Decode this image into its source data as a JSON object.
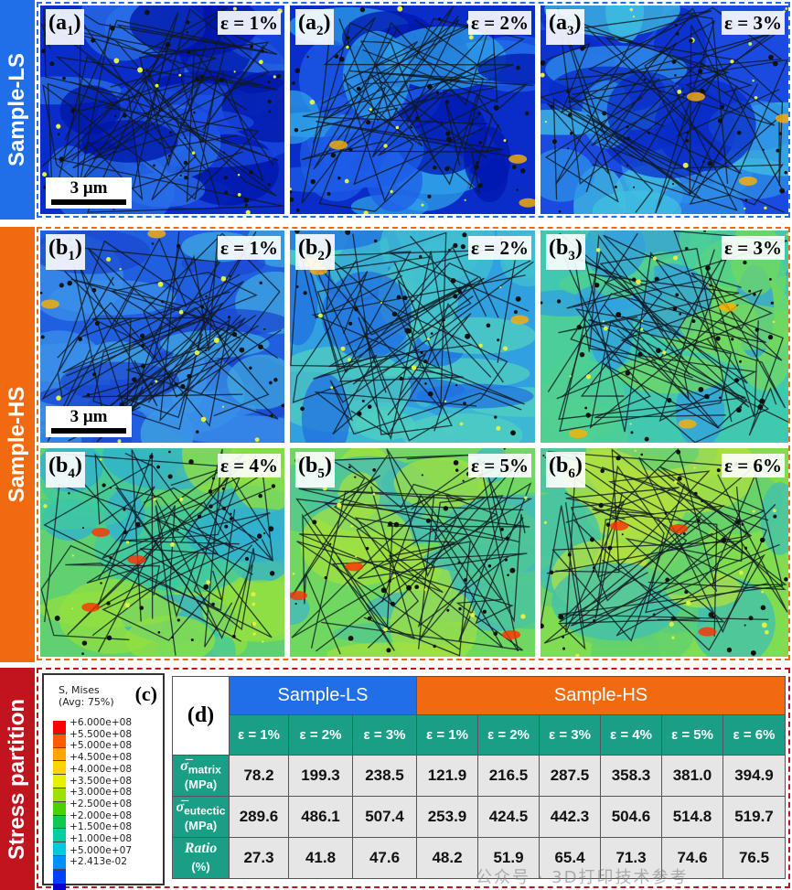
{
  "side_labels": {
    "ls": "Sample-LS",
    "hs": "Sample-HS",
    "sp": "Stress partition"
  },
  "scale_bar": "3 μm",
  "panels": [
    {
      "id": "a1",
      "letter": "a",
      "sub": "1",
      "strain": "ε = 1%"
    },
    {
      "id": "a2",
      "letter": "a",
      "sub": "2",
      "strain": "ε = 2%"
    },
    {
      "id": "a3",
      "letter": "a",
      "sub": "3",
      "strain": "ε = 3%"
    },
    {
      "id": "b1",
      "letter": "b",
      "sub": "1",
      "strain": "ε = 1%"
    },
    {
      "id": "b2",
      "letter": "b",
      "sub": "2",
      "strain": "ε = 2%"
    },
    {
      "id": "b3",
      "letter": "b",
      "sub": "3",
      "strain": "ε = 3%"
    },
    {
      "id": "b4",
      "letter": "b",
      "sub": "4",
      "strain": "ε = 4%"
    },
    {
      "id": "b5",
      "letter": "b",
      "sub": "5",
      "strain": "ε = 5%"
    },
    {
      "id": "b6",
      "letter": "b",
      "sub": "6",
      "strain": "ε = 6%"
    }
  ],
  "legend": {
    "title_line1": "S, Mises",
    "title_line2": "(Avg: 75%)",
    "label": "(c)",
    "values": [
      "+6.000e+08",
      "+5.500e+08",
      "+5.000e+08",
      "+4.500e+08",
      "+4.000e+08",
      "+3.500e+08",
      "+3.000e+08",
      "+2.500e+08",
      "+2.000e+08",
      "+1.500e+08",
      "+1.000e+08",
      "+5.000e+07",
      "+2.413e-02"
    ],
    "colors": [
      "#ff0000",
      "#ff5a00",
      "#ffa500",
      "#ffd400",
      "#e6f000",
      "#9ee000",
      "#4cd000",
      "#10c850",
      "#00d0a0",
      "#00c8e0",
      "#0090ff",
      "#0040ff",
      "#0000d0"
    ]
  },
  "table": {
    "label": "(d)",
    "group_ls": "Sample-LS",
    "group_hs": "Sample-HS",
    "strains": [
      "ε = 1%",
      "ε = 2%",
      "ε = 3%",
      "ε = 1%",
      "ε = 2%",
      "ε = 3%",
      "ε = 4%",
      "ε = 5%",
      "ε = 6%"
    ],
    "rows": [
      {
        "sym": "σ̅",
        "sub": "matrix",
        "unit": "(MPa)",
        "values": [
          "78.2",
          "199.3",
          "238.5",
          "121.9",
          "216.5",
          "287.5",
          "358.3",
          "381.0",
          "394.9"
        ]
      },
      {
        "sym": "σ̅",
        "sub": "eutectic",
        "unit": "(MPa)",
        "values": [
          "289.6",
          "486.1",
          "507.4",
          "253.9",
          "424.5",
          "442.3",
          "504.6",
          "514.8",
          "519.7"
        ]
      },
      {
        "sym": "Ratio",
        "sub": "",
        "unit": "(%)",
        "values": [
          "27.3",
          "41.8",
          "47.6",
          "48.2",
          "51.9",
          "65.4",
          "71.3",
          "74.6",
          "76.5"
        ]
      }
    ]
  },
  "watermark": "公众号 · 3D打印技术参考"
}
